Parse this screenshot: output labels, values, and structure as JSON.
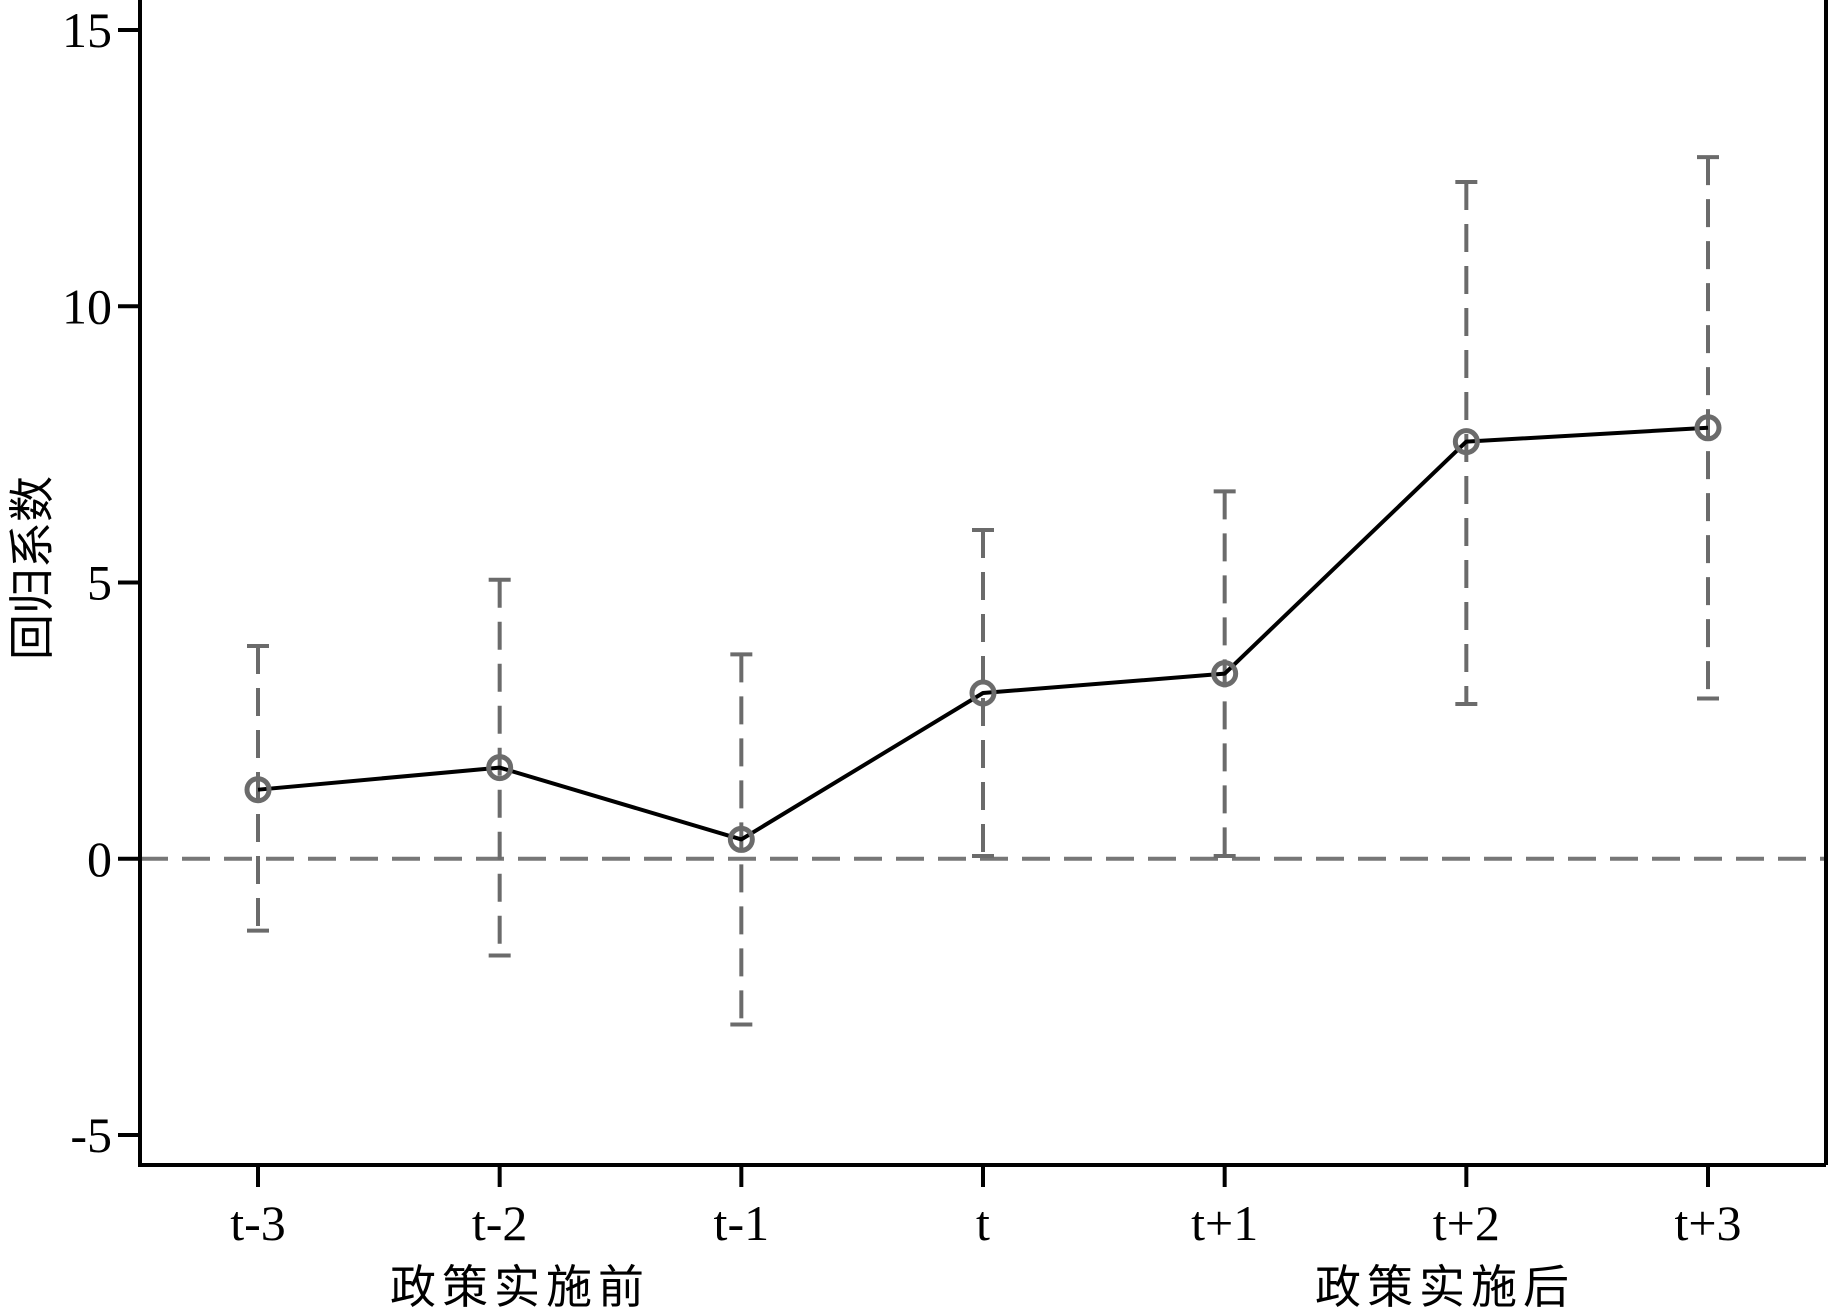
{
  "chart_data": {
    "type": "line",
    "title": "",
    "xlabel": "",
    "ylabel": "回归系数",
    "categories": [
      "t-3",
      "t-2",
      "t-1",
      "t",
      "t+1",
      "t+2",
      "t+3"
    ],
    "series": [
      {
        "values": [
          1.25,
          1.65,
          0.35,
          3.0,
          3.35,
          7.55,
          7.8
        ],
        "ci_lower": [
          -1.3,
          -1.75,
          -3.0,
          0.05,
          0.05,
          2.8,
          2.9
        ],
        "ci_upper": [
          3.85,
          5.05,
          3.7,
          5.95,
          6.65,
          12.25,
          12.7
        ]
      }
    ],
    "ylim": [
      -5.5,
      15.5
    ],
    "yticks": [
      -5,
      0,
      5,
      10,
      15
    ],
    "yticklabels": [
      "-5",
      "0",
      "5",
      "10",
      "15"
    ],
    "reference_line": 0,
    "group_labels": [
      "政策实施前",
      "政策实施后"
    ],
    "grid": false,
    "colors": {
      "line": "#000000",
      "marker": "#6b6b6b",
      "error_bar": "#6b6b6b",
      "reference_line": "#777777",
      "axis": "#000000"
    }
  }
}
